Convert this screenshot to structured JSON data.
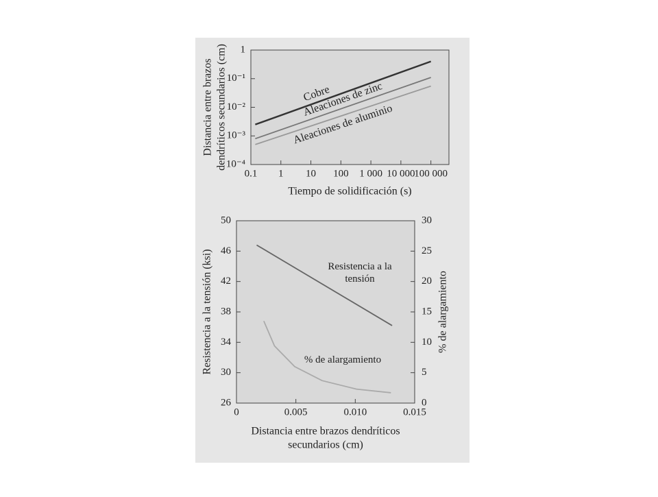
{
  "chart_data": [
    {
      "type": "line",
      "log_x": true,
      "log_y": true,
      "xlabel": "Tiempo de solidificación (s)",
      "ylabel": [
        "Distancia entre brazos",
        "dendríticos secundarios (cm)"
      ],
      "xlim": [
        0.1,
        400000
      ],
      "ylim": [
        0.0001,
        1
      ],
      "xticks": [
        0.1,
        1,
        10,
        100,
        {
          "value": 1000,
          "label": "1 000"
        },
        {
          "value": 10000,
          "label": "10 000"
        },
        {
          "value": 100000,
          "label": "100 000"
        }
      ],
      "yticks": [
        {
          "value": 0.0001,
          "label": "10⁻⁴"
        },
        {
          "value": 0.001,
          "label": "10⁻³"
        },
        {
          "value": 0.01,
          "label": "10⁻²"
        },
        {
          "value": 0.1,
          "label": "10⁻¹"
        },
        1
      ],
      "series": [
        {
          "name": "Cobre",
          "color": "#333333",
          "x": [
            0.14,
            100000
          ],
          "y": [
            0.0025,
            0.4
          ]
        },
        {
          "name": "Aleaciones de zinc",
          "color": "#777777",
          "x": [
            0.14,
            100000
          ],
          "y": [
            0.0008,
            0.11
          ]
        },
        {
          "name": "Aleaciones de aluminio",
          "color": "#999999",
          "x": [
            0.14,
            100000
          ],
          "y": [
            0.0005,
            0.055
          ]
        }
      ]
    },
    {
      "type": "line",
      "xlabel": [
        "Distancia entre brazos dendríticos",
        "secundarios (cm)"
      ],
      "ylabel": "Resistencia a la tensión (ksi)",
      "y2label": "% de alargamiento",
      "xlim": [
        0,
        0.015
      ],
      "ylim": [
        26,
        50
      ],
      "y2lim": [
        0,
        30
      ],
      "xticks": [
        0,
        0.005,
        {
          "value": 0.01,
          "label": "0.010"
        },
        0.015
      ],
      "yticks": [
        26,
        30,
        34,
        38,
        42,
        46,
        50
      ],
      "y2ticks": [
        0,
        5,
        10,
        15,
        20,
        25,
        30
      ],
      "series": [
        {
          "name": "Resistencia a la tensión",
          "color": "#666666",
          "x": [
            0.0017,
            0.0131
          ],
          "y": [
            46.8,
            36.2
          ]
        },
        {
          "name": "% de alargamiento",
          "color": "#aaaaaa",
          "axis": "y2",
          "x": [
            0.0023,
            0.0032,
            0.0049,
            0.0072,
            0.0101,
            0.013
          ],
          "y": [
            13.5,
            9.4,
            6.0,
            3.7,
            2.3,
            1.7
          ]
        }
      ]
    }
  ]
}
